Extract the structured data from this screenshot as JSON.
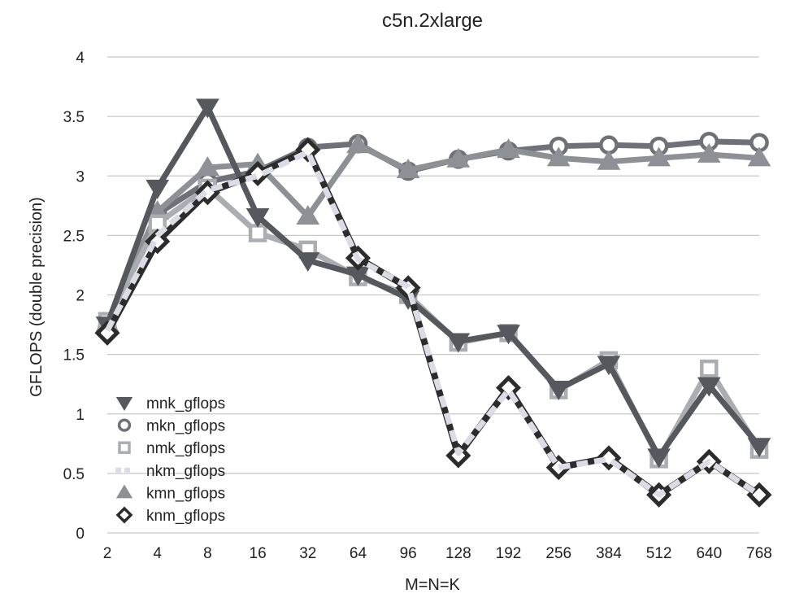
{
  "chart_data": {
    "type": "line",
    "title": "c5n.2xlarge",
    "xlabel": "M=N=K",
    "ylabel": "GFLOPS (double precision)",
    "categories": [
      "2",
      "4",
      "8",
      "16",
      "32",
      "64",
      "96",
      "128",
      "192",
      "256",
      "384",
      "512",
      "640",
      "768"
    ],
    "ylim": [
      0,
      4
    ],
    "yticks": [
      "0",
      "0.5",
      "1",
      "1.5",
      "2",
      "2.5",
      "3",
      "3.5",
      "4"
    ],
    "grid": true,
    "legend_position": "bottom-left",
    "series": [
      {
        "name": "mnk_gflops",
        "marker": "triangle-down",
        "color": "#55595e",
        "dash": "none",
        "values": [
          1.75,
          2.9,
          3.58,
          2.66,
          2.29,
          2.17,
          1.97,
          1.61,
          1.68,
          1.21,
          1.42,
          0.64,
          1.24,
          0.73
        ]
      },
      {
        "name": "mkn_gflops",
        "marker": "circle",
        "color": "#6e7278",
        "dash": "none",
        "values": [
          1.72,
          2.68,
          2.95,
          3.04,
          3.24,
          3.27,
          3.04,
          3.14,
          3.21,
          3.25,
          3.26,
          3.25,
          3.29,
          3.28
        ]
      },
      {
        "name": "nmk_gflops",
        "marker": "square",
        "color": "#aaadb1",
        "dash": "none",
        "values": [
          1.78,
          2.6,
          2.9,
          2.52,
          2.38,
          2.15,
          2.0,
          1.6,
          1.68,
          1.2,
          1.45,
          0.62,
          1.38,
          0.7
        ]
      },
      {
        "name": "nkm_gflops",
        "marker": "none",
        "color": "#dcdce6",
        "dash": "dashed",
        "values": [
          1.7,
          2.5,
          2.88,
          3.0,
          3.2,
          2.3,
          2.07,
          0.67,
          1.2,
          0.55,
          0.62,
          0.32,
          0.6,
          0.32
        ]
      },
      {
        "name": "kmn_gflops",
        "marker": "triangle-up",
        "color": "#8d9196",
        "dash": "none",
        "values": [
          1.76,
          2.7,
          3.07,
          3.1,
          2.66,
          3.26,
          3.05,
          3.14,
          3.22,
          3.15,
          3.12,
          3.15,
          3.18,
          3.15
        ]
      },
      {
        "name": "knm_gflops",
        "marker": "diamond",
        "color": "#2c2c2c",
        "dash": "none",
        "values": [
          1.68,
          2.45,
          2.86,
          3.02,
          3.22,
          2.31,
          2.06,
          0.65,
          1.22,
          0.55,
          0.63,
          0.32,
          0.6,
          0.32
        ]
      }
    ]
  }
}
